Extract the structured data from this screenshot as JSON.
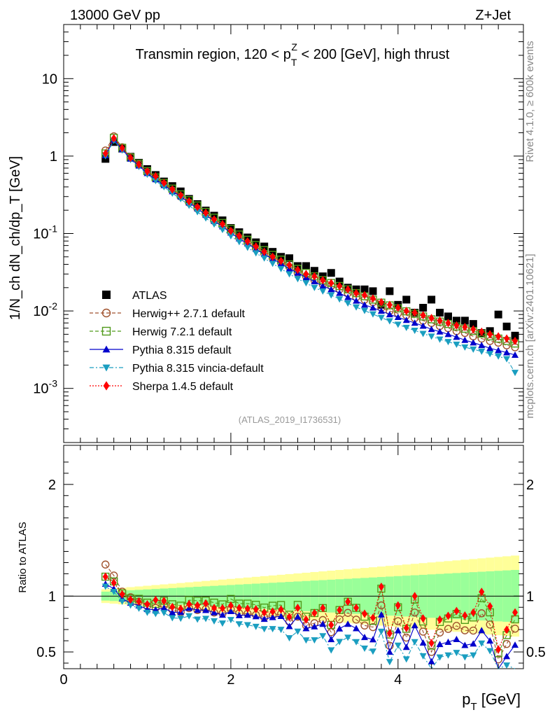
{
  "header": {
    "left": "13000 GeV pp",
    "right": "Z+Jet"
  },
  "side": {
    "rivet": "Rivet 4.1.0, ≥ 600k events",
    "mcplots": "mcplots.cern.ch [arXiv:2401.10621]"
  },
  "chart_data": {
    "type": "scatter",
    "title": "Transmin region, 120 < p_T^Z < 200 [GeV], high thrust",
    "title_parts": {
      "pre": "Transmin region, 120 < p",
      "sub": "T",
      "sup": "Z",
      "post": " < 200 [GeV], high thrust"
    },
    "analysis_tag": "(ATLAS_2019_I1736531)",
    "xlabel": "p_T [GeV]",
    "xlabel_parts": {
      "main": "p",
      "sub": "T",
      "post": " [GeV]"
    },
    "ylabel": "1/N_ch dN_ch/dp_T [GeV]",
    "ratio_ylabel": "Ratio to ATLAS",
    "xlim": [
      0,
      5.5
    ],
    "ylim": [
      0.0002,
      50
    ],
    "ratio_ylim": [
      0.35,
      2.35
    ],
    "yscale": "log",
    "x_ticks": [
      "0",
      "2",
      "4"
    ],
    "y_ticks": {
      "10": "10",
      "1": "1",
      "0.1": "10^-1",
      "0.01": "10^-2",
      "0.001": "10^-3"
    },
    "ratio_ticks": [
      "0.5",
      "1",
      "2"
    ],
    "legend": [
      {
        "name": "ATLAS",
        "color": "#000000",
        "marker": "square-filled",
        "line": "none"
      },
      {
        "name": "Herwig++ 2.7.1 default",
        "color": "#a0522d",
        "marker": "circle-open",
        "line": "dashed"
      },
      {
        "name": "Herwig 7.2.1 default",
        "color": "#4f9a1a",
        "marker": "square-open",
        "line": "dashed"
      },
      {
        "name": "Pythia 8.315 default",
        "color": "#0000cc",
        "marker": "triangle-up",
        "line": "solid"
      },
      {
        "name": "Pythia 8.315 vincia-default",
        "color": "#1a9ec0",
        "marker": "triangle-down",
        "line": "dashdot"
      },
      {
        "name": "Sherpa 1.4.5 default",
        "color": "#ff0000",
        "marker": "diamond",
        "line": "dotted"
      }
    ],
    "x": [
      0.5,
      0.6,
      0.7,
      0.8,
      0.9,
      1.0,
      1.1,
      1.2,
      1.3,
      1.4,
      1.5,
      1.6,
      1.7,
      1.8,
      1.9,
      2.0,
      2.1,
      2.2,
      2.3,
      2.4,
      2.5,
      2.6,
      2.7,
      2.8,
      2.9,
      3.0,
      3.1,
      3.2,
      3.3,
      3.4,
      3.5,
      3.6,
      3.7,
      3.8,
      3.9,
      4.0,
      4.1,
      4.2,
      4.3,
      4.4,
      4.5,
      4.6,
      4.7,
      4.8,
      4.9,
      5.0,
      5.1,
      5.2,
      5.3,
      5.4
    ],
    "series": [
      {
        "name": "ATLAS",
        "values": [
          0.92,
          1.52,
          1.25,
          0.98,
          0.82,
          0.68,
          0.57,
          0.47,
          0.41,
          0.35,
          0.28,
          0.24,
          0.198,
          0.17,
          0.148,
          0.118,
          0.104,
          0.089,
          0.077,
          0.068,
          0.058,
          0.05,
          0.048,
          0.038,
          0.038,
          0.033,
          0.028,
          0.031,
          0.024,
          0.02,
          0.019,
          0.019,
          0.018,
          0.012,
          0.018,
          0.012,
          0.014,
          0.0095,
          0.011,
          0.014,
          0.0095,
          0.0085,
          0.0075,
          0.0075,
          0.0068,
          0.0052,
          0.0055,
          0.009,
          0.0063,
          0.0048
        ]
      },
      {
        "name": "Herwig++ 2.7.1 default",
        "values": [
          1.18,
          1.8,
          1.3,
          0.97,
          0.78,
          0.62,
          0.51,
          0.43,
          0.36,
          0.3,
          0.25,
          0.21,
          0.175,
          0.145,
          0.125,
          0.104,
          0.088,
          0.075,
          0.064,
          0.055,
          0.048,
          0.042,
          0.037,
          0.031,
          0.028,
          0.025,
          0.022,
          0.021,
          0.019,
          0.017,
          0.015,
          0.014,
          0.013,
          0.011,
          0.01,
          0.0093,
          0.0088,
          0.0081,
          0.0075,
          0.007,
          0.0064,
          0.006,
          0.0055,
          0.0052,
          0.0047,
          0.0044,
          0.0041,
          0.0039,
          0.0036,
          0.0034
        ]
      },
      {
        "name": "Herwig 7.2.1 default",
        "values": [
          1.08,
          1.72,
          1.28,
          0.96,
          0.8,
          0.64,
          0.53,
          0.45,
          0.38,
          0.32,
          0.27,
          0.23,
          0.19,
          0.16,
          0.137,
          0.115,
          0.097,
          0.083,
          0.071,
          0.061,
          0.053,
          0.046,
          0.04,
          0.035,
          0.031,
          0.028,
          0.025,
          0.023,
          0.021,
          0.019,
          0.017,
          0.0155,
          0.014,
          0.0128,
          0.0118,
          0.0108,
          0.0099,
          0.0092,
          0.0085,
          0.0078,
          0.0073,
          0.0068,
          0.0063,
          0.0059,
          0.0055,
          0.0051,
          0.0047,
          0.0044,
          0.0041,
          0.0038
        ]
      },
      {
        "name": "Pythia 8.315 default",
        "values": [
          1.02,
          1.62,
          1.22,
          0.92,
          0.75,
          0.6,
          0.5,
          0.42,
          0.35,
          0.3,
          0.25,
          0.21,
          0.173,
          0.145,
          0.123,
          0.102,
          0.086,
          0.074,
          0.063,
          0.054,
          0.047,
          0.041,
          0.035,
          0.031,
          0.027,
          0.024,
          0.021,
          0.019,
          0.017,
          0.015,
          0.0135,
          0.012,
          0.011,
          0.01,
          0.009,
          0.0083,
          0.0076,
          0.007,
          0.0064,
          0.0058,
          0.0054,
          0.005,
          0.0046,
          0.0042,
          0.0039,
          0.0036,
          0.0033,
          0.0031,
          0.0029,
          0.0027
        ]
      },
      {
        "name": "Pythia 8.315 vincia-default",
        "values": [
          1.0,
          1.58,
          1.19,
          0.9,
          0.73,
          0.58,
          0.48,
          0.4,
          0.33,
          0.28,
          0.23,
          0.19,
          0.158,
          0.132,
          0.112,
          0.093,
          0.078,
          0.066,
          0.056,
          0.048,
          0.041,
          0.035,
          0.03,
          0.026,
          0.023,
          0.02,
          0.018,
          0.016,
          0.0142,
          0.0126,
          0.0112,
          0.0101,
          0.0091,
          0.0082,
          0.0074,
          0.0067,
          0.0061,
          0.0056,
          0.0051,
          0.0047,
          0.0043,
          0.004,
          0.0037,
          0.0034,
          0.0032,
          0.003,
          0.0028,
          0.0026,
          0.0024,
          0.0016
        ]
      },
      {
        "name": "Sherpa 1.4.5 default",
        "values": [
          1.08,
          1.7,
          1.27,
          0.95,
          0.78,
          0.63,
          0.55,
          0.45,
          0.37,
          0.31,
          0.26,
          0.22,
          0.185,
          0.152,
          0.132,
          0.108,
          0.093,
          0.079,
          0.068,
          0.058,
          0.05,
          0.044,
          0.039,
          0.034,
          0.03,
          0.028,
          0.025,
          0.023,
          0.021,
          0.019,
          0.017,
          0.016,
          0.0145,
          0.013,
          0.012,
          0.011,
          0.01,
          0.0095,
          0.0088,
          0.0081,
          0.0075,
          0.007,
          0.0065,
          0.0062,
          0.0058,
          0.0054,
          0.005,
          0.0047,
          0.0044,
          0.0041
        ]
      }
    ]
  }
}
